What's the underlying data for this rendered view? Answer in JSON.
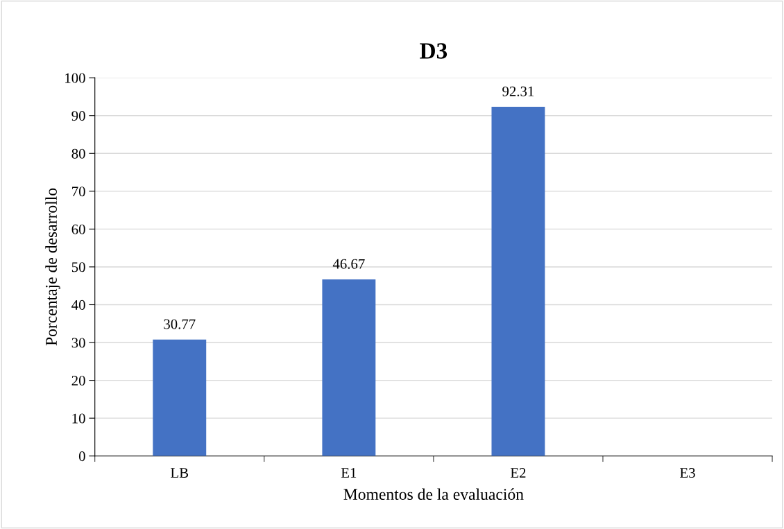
{
  "chart_data": {
    "type": "bar",
    "title": "D3",
    "xlabel": "Momentos de la evaluación",
    "ylabel": "Porcentaje de desarrollo",
    "categories": [
      "LB",
      "E1",
      "E2",
      "E3"
    ],
    "values": [
      30.77,
      46.67,
      92.31,
      null
    ],
    "color": "#4472c4",
    "ylim": [
      0,
      100
    ],
    "yticks": [
      0,
      10,
      20,
      30,
      40,
      50,
      60,
      70,
      80,
      90,
      100
    ],
    "grid": "y",
    "data_labels": true
  }
}
